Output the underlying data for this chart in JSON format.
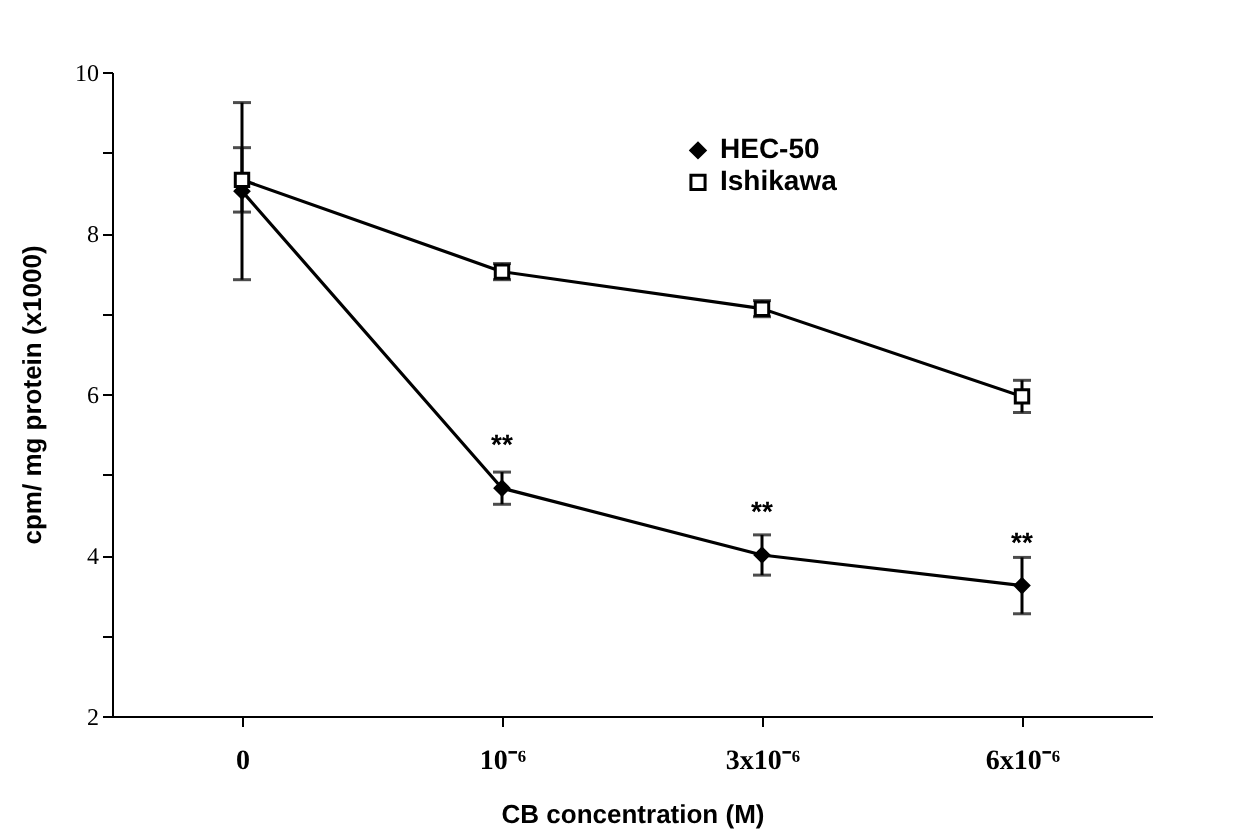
{
  "chart_data": {
    "type": "line",
    "xlabel": "CB concentration (M)",
    "ylabel": "cpm/ mg protein (x1000)",
    "categories": [
      "0",
      "10⁻⁶",
      "3x10⁻⁶",
      "6x10⁻⁶"
    ],
    "series": [
      {
        "name": "HEC-50",
        "color": "#000000",
        "marker": "diamond",
        "values": [
          8.52,
          4.83,
          4.0,
          3.62
        ],
        "errors": [
          1.1,
          0.2,
          0.25,
          0.35
        ]
      },
      {
        "name": "Ishikawa",
        "color": "#000000",
        "marker": "square",
        "values": [
          8.66,
          7.52,
          7.06,
          5.97
        ],
        "errors": [
          0.4,
          0.1,
          0.1,
          0.2
        ]
      }
    ],
    "ylim": [
      2,
      10
    ],
    "yticks": [
      2,
      {
        "value": 3,
        "label": null
      },
      4,
      {
        "value": 5,
        "label": null
      },
      6,
      {
        "value": 7,
        "label": null
      },
      8,
      {
        "value": 9,
        "label": null
      },
      10
    ],
    "grid": false,
    "legend": "top right",
    "line_style": "solid",
    "annotations": [
      {
        "text": "**",
        "x": "10⁻⁶",
        "y": 4.83
      },
      {
        "text": "**",
        "x": "3x10⁻⁶",
        "y": 4.0
      },
      {
        "text": "**",
        "x": "6x10⁻⁶",
        "y": 3.62
      }
    ]
  }
}
